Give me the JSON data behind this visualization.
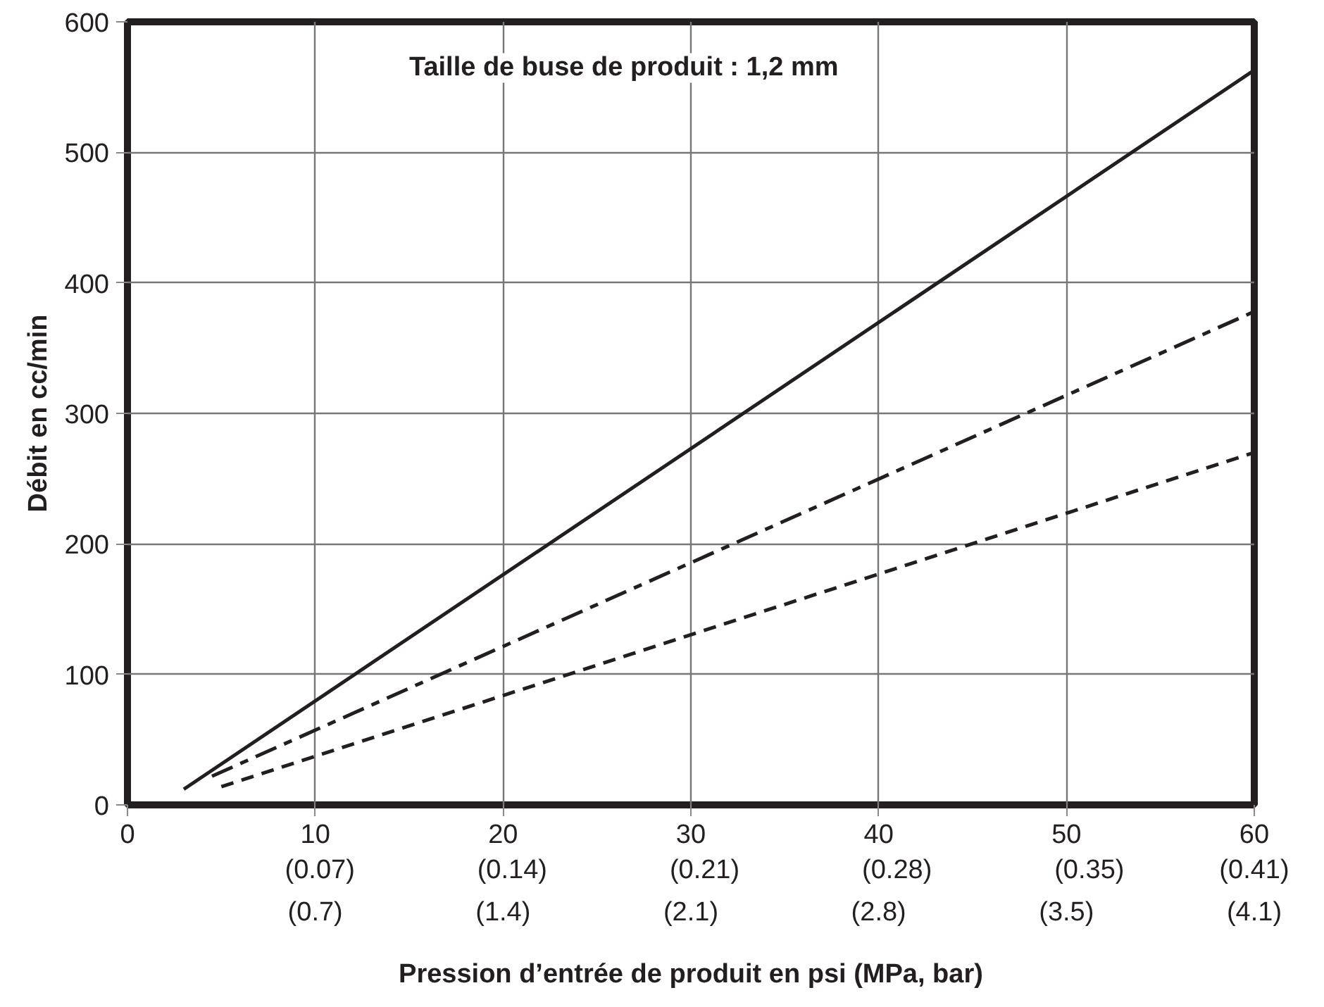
{
  "chart_data": {
    "type": "line",
    "xlabel": "Pression d’entrée de produit en psi (MPa, bar)",
    "ylabel": "Débit en cc/min",
    "annotations": [
      "Taille de buse de produit : 1,2 mm",
      "(0.7)",
      "(1.4)",
      "(2.1)",
      "(2.8)",
      "(3.5)",
      "(4.1)"
    ],
    "series": [
      {
        "color": "#231f20",
        "line_style": "solid",
        "x": [
          3,
          60
        ],
        "values": [
          12,
          563
        ]
      },
      {
        "color": "#231f20",
        "line_style": "dashdot",
        "x": [
          4.5,
          60
        ],
        "values": [
          22,
          378
        ]
      },
      {
        "color": "#231f20",
        "line_style": "dashed",
        "x": [
          5,
          60
        ],
        "values": [
          14,
          270
        ]
      }
    ],
    "xlim": [
      0,
      60
    ],
    "ylim": [
      0,
      600
    ],
    "xticks": [
      0,
      10,
      20,
      30,
      40,
      50,
      60
    ],
    "x2lim": [
      0,
      0.41
    ],
    "x2ticks": [
      {
        "value": 0.07,
        "label": "(0.07)"
      },
      {
        "value": 0.14,
        "label": "(0.14)"
      },
      {
        "value": 0.21,
        "label": "(0.21)"
      },
      {
        "value": 0.28,
        "label": "(0.28)"
      },
      {
        "value": 0.35,
        "label": "(0.35)"
      },
      {
        "value": 0.41,
        "label": "(0.41)"
      }
    ],
    "yticks": [
      0,
      100,
      200,
      300,
      400,
      500,
      600
    ],
    "grid": true,
    "marker": "none"
  }
}
